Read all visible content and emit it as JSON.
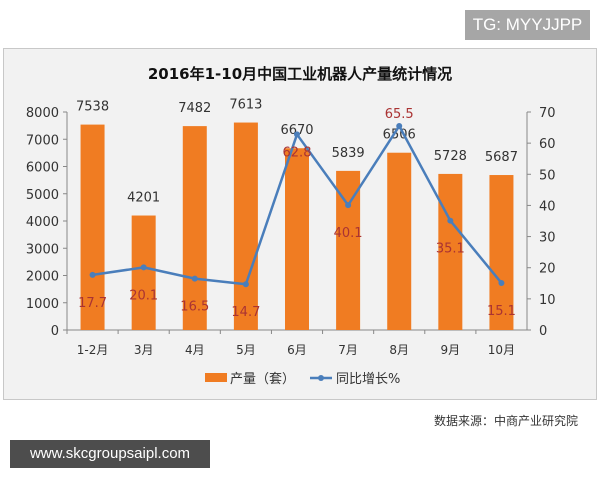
{
  "tag": "TG: MYYJJPP",
  "source": "数据来源：中商产业研究院",
  "url": "www.skcgroupsaipl.com",
  "chart_data": {
    "type": "bar+line",
    "title": "2016年1-10月中国工业机器人产量统计情况",
    "categories": [
      "1-2月",
      "3月",
      "4月",
      "5月",
      "6月",
      "7月",
      "8月",
      "9月",
      "10月"
    ],
    "series": [
      {
        "name": "产量（套）",
        "type": "bar",
        "axis": "left",
        "color": "#f07c22",
        "values": [
          7538,
          4201,
          7482,
          7613,
          6670,
          5839,
          6506,
          5728,
          5687
        ]
      },
      {
        "name": "同比增长%",
        "type": "line",
        "axis": "right",
        "color": "#4a7ebb",
        "values": [
          17.7,
          20.1,
          16.5,
          14.7,
          62.8,
          40.1,
          65.5,
          35.1,
          15.1
        ]
      }
    ],
    "y_left": {
      "range": [
        0,
        8000
      ],
      "ticks": [
        0,
        1000,
        2000,
        3000,
        4000,
        5000,
        6000,
        7000,
        8000
      ]
    },
    "y_right": {
      "range": [
        0,
        70
      ],
      "ticks": [
        0,
        10,
        20,
        30,
        40,
        50,
        60,
        70
      ]
    },
    "legend": "bottom",
    "grid": false
  }
}
